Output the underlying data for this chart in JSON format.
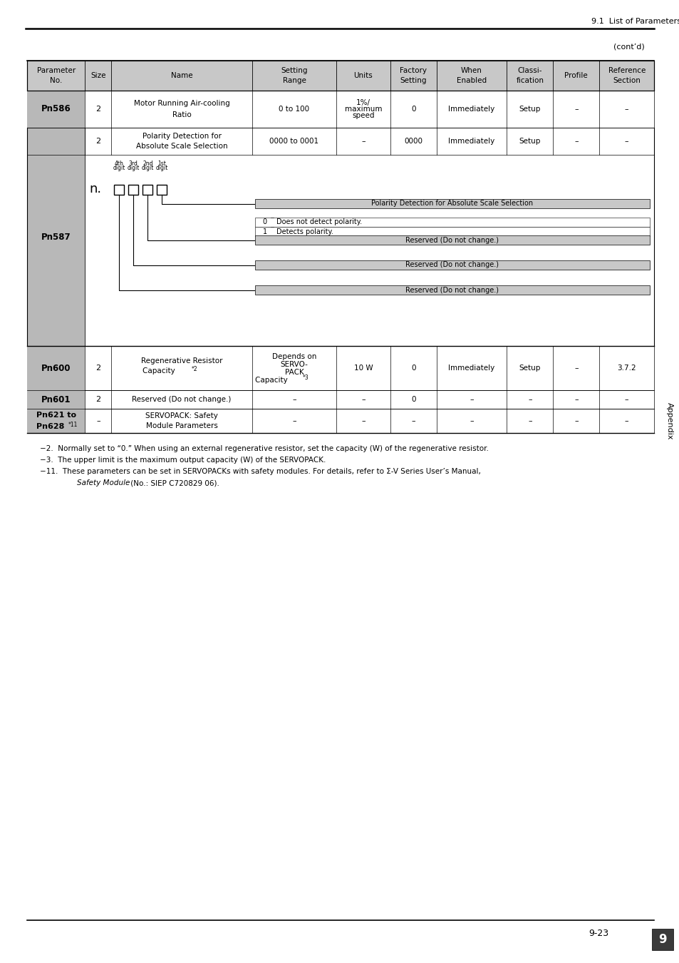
{
  "page_header_right": "9.1  List of Parameters",
  "cont_label": "(cont’d)",
  "header_cols": [
    "Parameter\nNo.",
    "Size",
    "Name",
    "Setting\nRange",
    "Units",
    "Factory\nSetting",
    "When\nEnabled",
    "Classi-\nfication",
    "Profile",
    "Reference\nSection"
  ],
  "bg_header": "#c8c8c8",
  "bg_white": "#ffffff",
  "bg_param_label": "#b8b8b8",
  "border_color": "#000000",
  "page_num": "9-23",
  "footnote2": "−2.  Normally set to “0.” When using an external regenerative resistor, set the capacity (W) of the regenerative resistor.",
  "footnote3": "−3.  The upper limit is the maximum output capacity (W) of the SERVOPACK.",
  "footnote11_1": "−11.  These parameters can be set in SERVOPACKs with safety modules. For details, refer to Σ-V Series User’s Manual,",
  "footnote11_2_italic": "Safety Module",
  "footnote11_2_normal": " (No.: SIEP C720829 06).",
  "appendix_label": "Appendix",
  "section_num": "9"
}
